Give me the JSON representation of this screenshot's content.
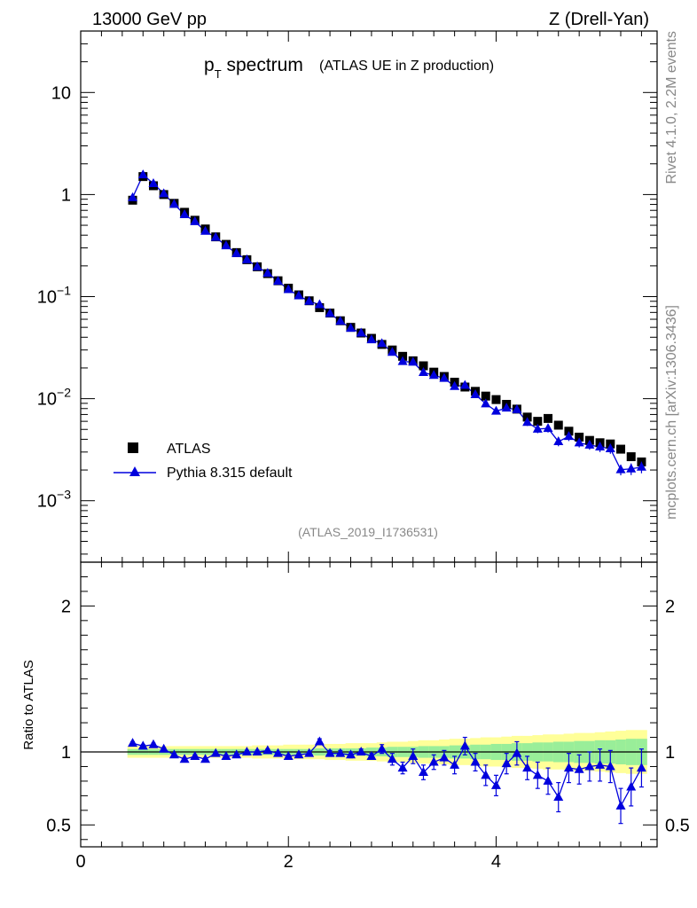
{
  "header": {
    "left": "13000 GeV pp",
    "right": "Z (Drell-Yan)"
  },
  "side": {
    "rivet": "Rivet 4.1.0,  2.2M events",
    "source": "mcplots.cern.ch [arXiv:1306.3436]"
  },
  "chart_data": {
    "type": "scatter",
    "title_main": "p",
    "title_sub": "T",
    "title_rest": " spectrum",
    "title_note": "(ATLAS UE in Z production)",
    "analysis_label": "(ATLAS_2019_I1736531)",
    "xlim": [
      0,
      5.55
    ],
    "ylim_log": [
      0.00025,
      40
    ],
    "ratio_ylim": [
      0.35,
      2.3
    ],
    "ratio_ylabel": "Ratio to ATLAS",
    "legend": {
      "data": "ATLAS",
      "mc": "Pythia 8.315 default",
      "position": "bottom-left"
    },
    "x_ticks": [
      {
        "v": 0,
        "label": "0"
      },
      {
        "v": 2,
        "label": "2"
      },
      {
        "v": 4,
        "label": "4"
      }
    ],
    "y_ticks": [
      {
        "v": 10,
        "base": "10",
        "exp": ""
      },
      {
        "v": 1,
        "base": "1",
        "exp": ""
      },
      {
        "v": 0.1,
        "base": "10",
        "exp": "−1"
      },
      {
        "v": 0.01,
        "base": "10",
        "exp": "−2"
      },
      {
        "v": 0.001,
        "base": "10",
        "exp": "−3"
      }
    ],
    "ratio_ticks": [
      {
        "v": 2,
        "label": "2"
      },
      {
        "v": 1,
        "label": "1"
      },
      {
        "v": 0.5,
        "label": "0.5"
      }
    ],
    "x": [
      0.5,
      0.6,
      0.7,
      0.8,
      0.9,
      1.0,
      1.1,
      1.2,
      1.3,
      1.4,
      1.5,
      1.6,
      1.7,
      1.8,
      1.9,
      2.0,
      2.1,
      2.2,
      2.3,
      2.4,
      2.5,
      2.6,
      2.7,
      2.8,
      2.9,
      3.0,
      3.1,
      3.2,
      3.3,
      3.4,
      3.5,
      3.6,
      3.7,
      3.8,
      3.9,
      4.0,
      4.1,
      4.2,
      4.3,
      4.4,
      4.5,
      4.6,
      4.7,
      4.8,
      4.9,
      5.0,
      5.1,
      5.2,
      5.3,
      5.4
    ],
    "atlas": [
      0.88,
      1.5,
      1.22,
      1.0,
      0.82,
      0.67,
      0.56,
      0.46,
      0.385,
      0.325,
      0.27,
      0.23,
      0.196,
      0.168,
      0.143,
      0.121,
      0.104,
      0.091,
      0.078,
      0.069,
      0.058,
      0.05,
      0.044,
      0.039,
      0.034,
      0.03,
      0.026,
      0.0235,
      0.021,
      0.0182,
      0.0165,
      0.0145,
      0.013,
      0.0118,
      0.0106,
      0.0098,
      0.0088,
      0.0079,
      0.0066,
      0.006,
      0.0064,
      0.0055,
      0.0048,
      0.0042,
      0.0039,
      0.0037,
      0.0036,
      0.0032,
      0.0027,
      0.0024
    ],
    "ratio": [
      1.06,
      1.04,
      1.05,
      1.02,
      0.98,
      0.95,
      0.97,
      0.95,
      0.99,
      0.97,
      0.98,
      1.0,
      1.0,
      1.01,
      0.99,
      0.97,
      0.98,
      0.99,
      1.07,
      0.99,
      0.99,
      0.98,
      1.0,
      0.97,
      1.02,
      0.95,
      0.89,
      0.97,
      0.86,
      0.93,
      0.96,
      0.91,
      1.04,
      0.93,
      0.84,
      0.77,
      0.92,
      0.99,
      0.89,
      0.84,
      0.8,
      0.69,
      0.89,
      0.88,
      0.9,
      0.91,
      0.9,
      0.63,
      0.76,
      0.89
    ],
    "ratio_err": [
      0.01,
      0.01,
      0.01,
      0.01,
      0.01,
      0.01,
      0.01,
      0.01,
      0.01,
      0.01,
      0.01,
      0.01,
      0.01,
      0.01,
      0.01,
      0.01,
      0.01,
      0.01,
      0.02,
      0.02,
      0.02,
      0.02,
      0.02,
      0.02,
      0.03,
      0.04,
      0.04,
      0.05,
      0.05,
      0.05,
      0.05,
      0.06,
      0.06,
      0.06,
      0.07,
      0.07,
      0.07,
      0.08,
      0.08,
      0.09,
      0.09,
      0.1,
      0.1,
      0.1,
      0.1,
      0.11,
      0.11,
      0.12,
      0.13,
      0.13
    ],
    "band_inner": [
      0.02,
      0.02,
      0.02,
      0.02,
      0.02,
      0.02,
      0.02,
      0.02,
      0.02,
      0.02,
      0.02,
      0.02,
      0.02,
      0.02,
      0.02,
      0.02,
      0.02,
      0.02,
      0.025,
      0.025,
      0.025,
      0.025,
      0.025,
      0.03,
      0.03,
      0.035,
      0.035,
      0.035,
      0.04,
      0.04,
      0.04,
      0.045,
      0.045,
      0.05,
      0.05,
      0.055,
      0.055,
      0.06,
      0.06,
      0.065,
      0.065,
      0.07,
      0.07,
      0.075,
      0.075,
      0.08,
      0.08,
      0.085,
      0.09,
      0.09
    ],
    "band_outer": [
      0.04,
      0.04,
      0.04,
      0.04,
      0.04,
      0.04,
      0.04,
      0.04,
      0.04,
      0.04,
      0.04,
      0.04,
      0.045,
      0.045,
      0.045,
      0.05,
      0.05,
      0.05,
      0.05,
      0.055,
      0.055,
      0.06,
      0.06,
      0.06,
      0.065,
      0.07,
      0.07,
      0.075,
      0.08,
      0.08,
      0.085,
      0.09,
      0.09,
      0.095,
      0.1,
      0.1,
      0.105,
      0.11,
      0.11,
      0.115,
      0.12,
      0.12,
      0.125,
      0.13,
      0.13,
      0.135,
      0.14,
      0.145,
      0.15,
      0.15
    ],
    "colors": {
      "data": "#000000",
      "mc": "#0000dd",
      "band_inner": "#99ee99",
      "band_outer": "#ffff99"
    }
  }
}
